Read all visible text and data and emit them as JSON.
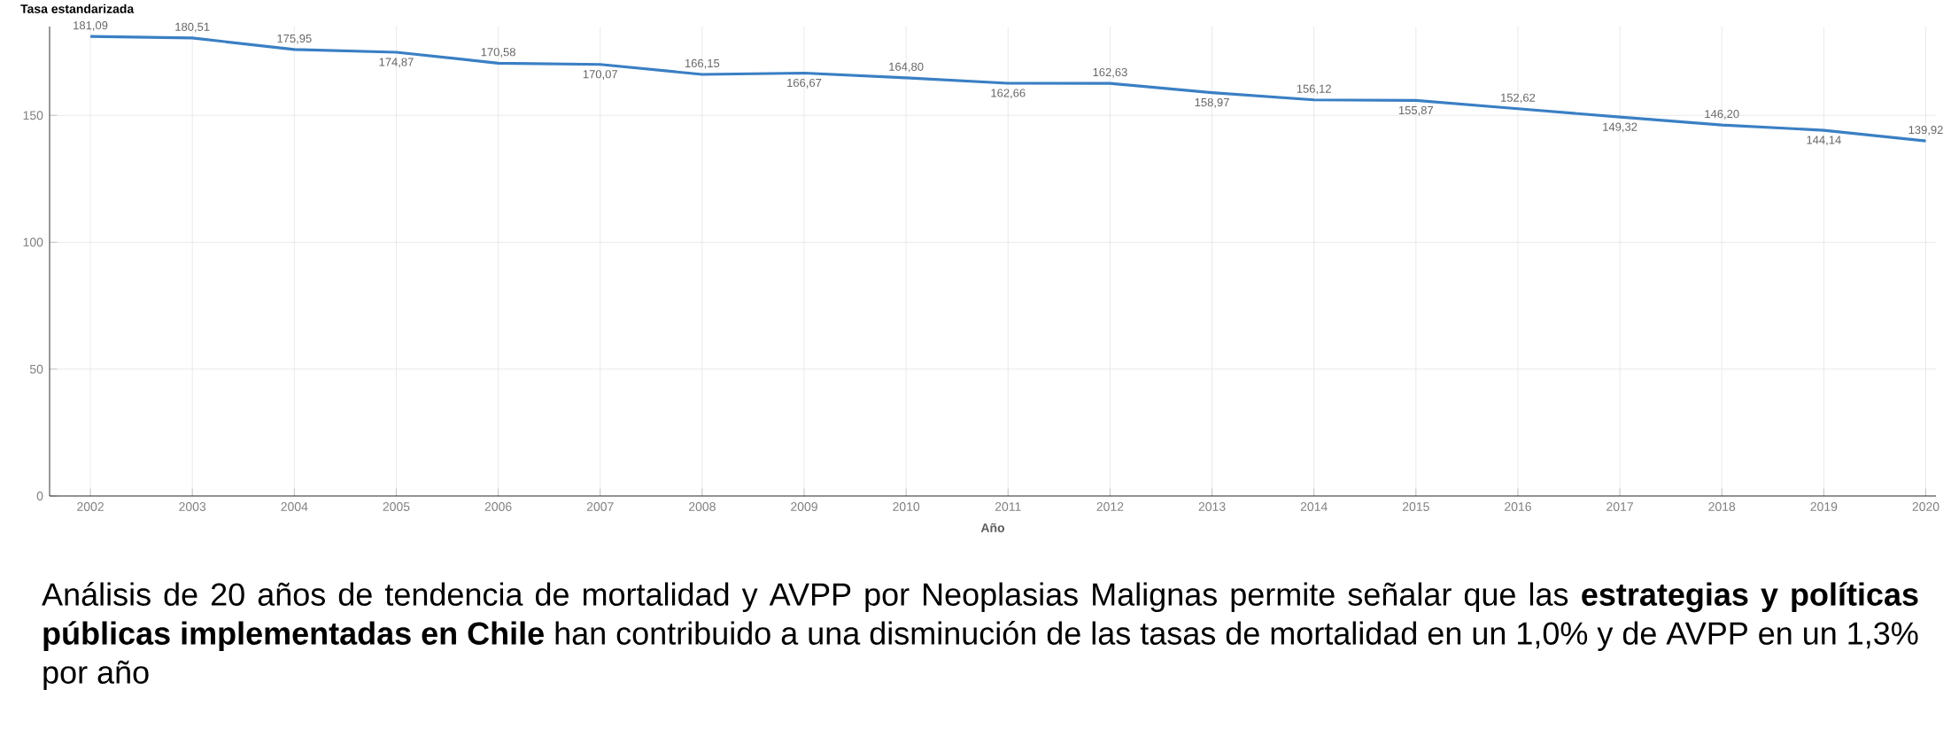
{
  "chart_data": {
    "type": "line",
    "ylabel": "Tasa estandarizada",
    "xlabel": "Año",
    "x": [
      2002,
      2003,
      2004,
      2005,
      2006,
      2007,
      2008,
      2009,
      2010,
      2011,
      2012,
      2013,
      2014,
      2015,
      2016,
      2017,
      2018,
      2019,
      2020
    ],
    "series": [
      {
        "color": "#3a7fc4",
        "values": [
          181.09,
          180.51,
          175.95,
          174.87,
          170.58,
          170.07,
          166.15,
          166.67,
          164.8,
          162.66,
          162.63,
          158.97,
          156.12,
          155.87,
          152.62,
          149.32,
          146.2,
          144.14,
          139.92
        ],
        "value_labels": [
          "181,09",
          "180,51",
          "175,95",
          "174,87",
          "170,58",
          "170,07",
          "166,15",
          "166,67",
          "164,80",
          "162,66",
          "162,63",
          "158,97",
          "156,12",
          "155,87",
          "152,62",
          "149,32",
          "146,20",
          "144,14",
          "139,92"
        ]
      }
    ],
    "xlim": [
      2001.6,
      2020.1
    ],
    "ylim": [
      0,
      185
    ],
    "xticks": [
      2002,
      2003,
      2004,
      2005,
      2006,
      2007,
      2008,
      2009,
      2010,
      2011,
      2012,
      2013,
      2014,
      2015,
      2016,
      2017,
      2018,
      2019,
      2020
    ],
    "yticks": [
      0,
      50,
      100,
      150
    ],
    "grid": true,
    "marker": "none",
    "line_style": "solid",
    "annotations": [
      "Análisis de 20 años de tendencia de mortalidad y AVPP por Neoplasias Malignas permite señalar que las **estrategias y políticas públicas implementadas en Chile** han contribuido a una disminución de las tasas de mortalidad en un 1,0% y de AVPP en un 1,3% por año"
    ]
  }
}
